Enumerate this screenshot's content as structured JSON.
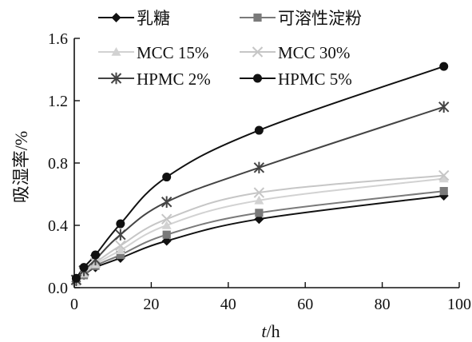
{
  "chart_data": {
    "type": "line",
    "xlabel_italic": "t",
    "xlabel_unit": "/h",
    "ylabel": "吸湿率/%",
    "xlim": [
      0,
      100
    ],
    "ylim": [
      0,
      1.6
    ],
    "xticks": [
      0,
      20,
      40,
      60,
      80,
      100
    ],
    "yticks": [
      0.0,
      0.4,
      0.8,
      1.2,
      1.6
    ],
    "ytick_labels": [
      "0.0",
      "0.4",
      "0.8",
      "1.2",
      "1.6"
    ],
    "grid": false,
    "legend_placement": "top-left",
    "series": [
      {
        "name": "乳糖",
        "color": "#111111",
        "marker": "diamond",
        "x": [
          0.5,
          2.5,
          5.5,
          12,
          24,
          48,
          96
        ],
        "y": [
          0.04,
          0.08,
          0.13,
          0.19,
          0.3,
          0.44,
          0.59
        ]
      },
      {
        "name": "可溶性淀粉",
        "color": "#7a7a7a",
        "marker": "square",
        "x": [
          0.5,
          2.5,
          5.5,
          12,
          24,
          48,
          96
        ],
        "y": [
          0.04,
          0.08,
          0.14,
          0.21,
          0.34,
          0.48,
          0.62
        ]
      },
      {
        "name": "MCC 15%",
        "color": "#d2d2d2",
        "marker": "triangle",
        "x": [
          0.5,
          2.5,
          5.5,
          12,
          24,
          48,
          96
        ],
        "y": [
          0.04,
          0.09,
          0.15,
          0.24,
          0.4,
          0.56,
          0.7
        ]
      },
      {
        "name": "MCC 30%",
        "color": "#c6c6c6",
        "marker": "cross",
        "x": [
          0.5,
          2.5,
          5.5,
          12,
          24,
          48,
          96
        ],
        "y": [
          0.05,
          0.1,
          0.16,
          0.27,
          0.44,
          0.61,
          0.72
        ]
      },
      {
        "name": "HPMC 2%",
        "color": "#444444",
        "marker": "asterisk",
        "x": [
          0.5,
          2.5,
          5.5,
          12,
          24,
          48,
          96
        ],
        "y": [
          0.05,
          0.11,
          0.18,
          0.34,
          0.55,
          0.77,
          1.16
        ]
      },
      {
        "name": "HPMC 5%",
        "color": "#111111",
        "marker": "circle",
        "x": [
          0.5,
          2.5,
          5.5,
          12,
          24,
          48,
          96
        ],
        "y": [
          0.06,
          0.13,
          0.21,
          0.41,
          0.71,
          1.01,
          1.42
        ]
      }
    ]
  }
}
